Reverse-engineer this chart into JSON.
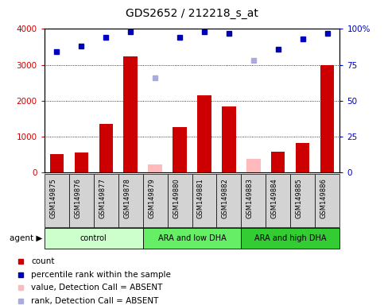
{
  "title": "GDS2652 / 212218_s_at",
  "samples": [
    "GSM149875",
    "GSM149876",
    "GSM149877",
    "GSM149878",
    "GSM149879",
    "GSM149880",
    "GSM149881",
    "GSM149882",
    "GSM149883",
    "GSM149884",
    "GSM149885",
    "GSM149886"
  ],
  "counts": [
    500,
    560,
    1350,
    3230,
    null,
    1270,
    2160,
    1830,
    null,
    575,
    820,
    2990
  ],
  "counts_absent": [
    null,
    null,
    null,
    null,
    220,
    null,
    null,
    null,
    380,
    null,
    null,
    null
  ],
  "percentile_ranks": [
    84,
    88,
    94,
    98,
    null,
    94,
    98,
    97,
    null,
    86,
    93,
    97
  ],
  "percentile_ranks_absent": [
    null,
    null,
    null,
    null,
    66,
    null,
    null,
    null,
    78,
    null,
    null,
    null
  ],
  "groups": [
    {
      "label": "control",
      "start": 0,
      "end": 3,
      "color": "#ccffcc"
    },
    {
      "label": "ARA and low DHA",
      "start": 4,
      "end": 7,
      "color": "#66ee66"
    },
    {
      "label": "ARA and high DHA",
      "start": 8,
      "end": 11,
      "color": "#33cc33"
    }
  ],
  "bar_color": "#cc0000",
  "bar_absent_color": "#ffbbbb",
  "dot_color": "#0000bb",
  "dot_absent_color": "#aaaadd",
  "sample_box_color": "#d3d3d3",
  "ylim_left": [
    0,
    4000
  ],
  "ylim_right": [
    0,
    100
  ],
  "yticks_left": [
    0,
    1000,
    2000,
    3000,
    4000
  ],
  "yticks_right": [
    0,
    25,
    50,
    75,
    100
  ],
  "ytick_labels_right": [
    "0",
    "25",
    "50",
    "75",
    "100%"
  ],
  "legend_items": [
    {
      "label": "count",
      "color": "#cc0000"
    },
    {
      "label": "percentile rank within the sample",
      "color": "#0000bb"
    },
    {
      "label": "value, Detection Call = ABSENT",
      "color": "#ffbbbb"
    },
    {
      "label": "rank, Detection Call = ABSENT",
      "color": "#aaaadd"
    }
  ],
  "agent_label": "agent",
  "left_color": "#cc0000",
  "right_color": "#0000bb",
  "title_fontsize": 10,
  "tick_fontsize": 7.5,
  "bar_width": 0.55
}
